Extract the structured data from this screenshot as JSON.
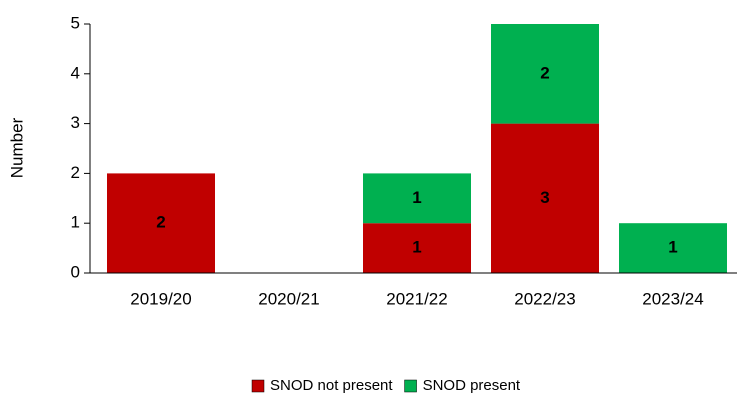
{
  "chart_data": {
    "type": "stacked_bar",
    "y_label": "Number",
    "categories": [
      "2019/20",
      "2020/21",
      "2021/22",
      "2022/23",
      "2023/24"
    ],
    "series": [
      {
        "name": "SNOD not present",
        "color": "#c00000",
        "values": [
          2,
          0,
          1,
          3,
          0
        ]
      },
      {
        "name": "SNOD present",
        "color": "#00b050",
        "values": [
          0,
          0,
          1,
          2,
          1
        ]
      }
    ],
    "ylim": [
      0,
      5
    ],
    "yticks": [
      0,
      1,
      2,
      3,
      4,
      5
    ],
    "legend": "bottom"
  }
}
